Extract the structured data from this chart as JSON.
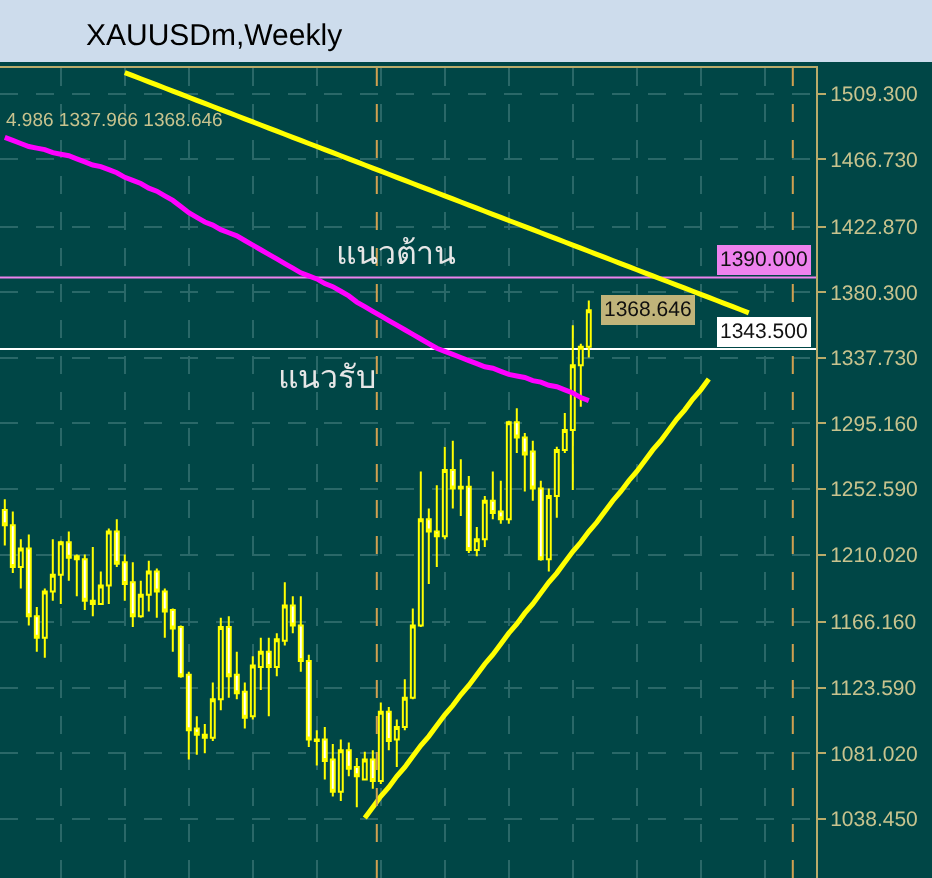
{
  "chart_data": {
    "type": "candlestick",
    "title": "XAUUSDm,Weekly",
    "color": "#ffff00",
    "categories": [
      null,
      null,
      null,
      null,
      null,
      null,
      null,
      null,
      null,
      null,
      null,
      null,
      null,
      null,
      null,
      null,
      null,
      null,
      null,
      null,
      null,
      null,
      null,
      null,
      null,
      null,
      null,
      null,
      null,
      null,
      null,
      null,
      null,
      null,
      null,
      null,
      null,
      null,
      null,
      null,
      null,
      null,
      null,
      null,
      null,
      null,
      null,
      null,
      null,
      null,
      null,
      null,
      null,
      null,
      null,
      null,
      null,
      null,
      null,
      null,
      null,
      null,
      null,
      null,
      null,
      null,
      null,
      null,
      null,
      null,
      null,
      null,
      null,
      null,
      null,
      null,
      null,
      null,
      null,
      null,
      null,
      null,
      null,
      null,
      null,
      null,
      null,
      null,
      null,
      null,
      null,
      null,
      null,
      null,
      null,
      null,
      null,
      null,
      null,
      null,
      null,
      null
    ],
    "ohlc": [
      [
        1239,
        1246,
        1216,
        1229
      ],
      [
        1229,
        1238,
        1198,
        1202
      ],
      [
        1202,
        1220,
        1188,
        1214
      ],
      [
        1214,
        1223,
        1164,
        1170
      ],
      [
        1170,
        1176,
        1147,
        1156
      ],
      [
        1156,
        1188,
        1143,
        1186
      ],
      [
        1186,
        1220,
        1180,
        1197
      ],
      [
        1197,
        1219,
        1178,
        1218
      ],
      [
        1218,
        1225,
        1193,
        1208
      ],
      [
        1209,
        1210,
        1183,
        1207
      ],
      [
        1207,
        1210,
        1174,
        1180
      ],
      [
        1180,
        1215,
        1170,
        1178
      ],
      [
        1178,
        1199,
        1178,
        1190
      ],
      [
        1190,
        1227,
        1178,
        1225
      ],
      [
        1225,
        1233,
        1202,
        1204
      ],
      [
        1205,
        1210,
        1180,
        1191
      ],
      [
        1192,
        1205,
        1163,
        1170
      ],
      [
        1170,
        1193,
        1169,
        1184
      ],
      [
        1184,
        1206,
        1173,
        1199
      ],
      [
        1199,
        1201,
        1169,
        1186
      ],
      [
        1186,
        1188,
        1156,
        1173
      ],
      [
        1174,
        1175,
        1147,
        1162
      ],
      [
        1163,
        1164,
        1130,
        1131
      ],
      [
        1132,
        1134,
        1077,
        1096
      ],
      [
        1097,
        1105,
        1080,
        1093
      ],
      [
        1093,
        1100,
        1081,
        1091
      ],
      [
        1091,
        1127,
        1089,
        1116
      ],
      [
        1116,
        1169,
        1109,
        1163
      ],
      [
        1163,
        1170,
        1117,
        1131
      ],
      [
        1132,
        1147,
        1116,
        1120
      ],
      [
        1121,
        1127,
        1097,
        1104
      ],
      [
        1105,
        1144,
        1103,
        1138
      ],
      [
        1137,
        1156,
        1122,
        1147
      ],
      [
        1147,
        1156,
        1105,
        1137
      ],
      [
        1137,
        1159,
        1131,
        1155
      ],
      [
        1154,
        1192,
        1151,
        1177
      ],
      [
        1177,
        1183,
        1159,
        1164
      ],
      [
        1164,
        1183,
        1134,
        1141
      ],
      [
        1141,
        1145,
        1085,
        1090
      ],
      [
        1090,
        1096,
        1073,
        1089
      ],
      [
        1090,
        1098,
        1064,
        1076
      ],
      [
        1077,
        1087,
        1053,
        1056
      ],
      [
        1056,
        1090,
        1050,
        1083
      ],
      [
        1083,
        1088,
        1066,
        1071
      ],
      [
        1072,
        1078,
        1046,
        1066
      ],
      [
        1064,
        1082,
        1064,
        1077
      ],
      [
        1077,
        1083,
        1058,
        1063
      ],
      [
        1063,
        1114,
        1061,
        1108
      ],
      [
        1108,
        1111,
        1083,
        1089
      ],
      [
        1090,
        1103,
        1072,
        1098
      ],
      [
        1098,
        1129,
        1096,
        1117
      ],
      [
        1117,
        1175,
        1116,
        1164
      ],
      [
        1164,
        1264,
        1163,
        1233
      ],
      [
        1233,
        1240,
        1191,
        1225
      ],
      [
        1225,
        1255,
        1202,
        1222
      ],
      [
        1222,
        1280,
        1220,
        1265
      ],
      [
        1265,
        1284,
        1240,
        1253
      ],
      [
        1253,
        1272,
        1235,
        1254
      ],
      [
        1254,
        1261,
        1211,
        1213
      ],
      [
        1213,
        1228,
        1209,
        1220
      ],
      [
        1220,
        1248,
        1215,
        1245
      ],
      [
        1245,
        1264,
        1233,
        1237
      ],
      [
        1238,
        1258,
        1230,
        1233
      ],
      [
        1233,
        1297,
        1230,
        1296
      ],
      [
        1296,
        1305,
        1276,
        1286
      ],
      [
        1286,
        1289,
        1251,
        1275
      ],
      [
        1277,
        1284,
        1245,
        1253
      ],
      [
        1253,
        1258,
        1206,
        1207
      ],
      [
        1207,
        1253,
        1199,
        1248
      ],
      [
        1248,
        1280,
        1234,
        1278
      ],
      [
        1278,
        1302,
        1276,
        1291
      ],
      [
        1291,
        1359,
        1252,
        1333
      ],
      [
        1333,
        1347,
        1306,
        1345
      ],
      [
        1345,
        1375,
        1337.966,
        1368.646
      ],
      null,
      null,
      null,
      null,
      null,
      null,
      null,
      null,
      null,
      null,
      null,
      null,
      null,
      null,
      null,
      null,
      null,
      null,
      null,
      null,
      null,
      null,
      null,
      null,
      null,
      null,
      null,
      null
    ],
    "series": [
      {
        "type": "line",
        "color": "#ff00ff",
        "values": [
          1481,
          1479,
          1477,
          1475,
          1474,
          1473,
          1471,
          1470,
          1469,
          1467,
          1465,
          1463,
          1462,
          1460,
          1458,
          1455,
          1453,
          1451,
          1448,
          1446,
          1443,
          1440,
          1436,
          1432,
          1429,
          1426,
          1424,
          1421,
          1419,
          1417,
          1414,
          1411,
          1408,
          1405,
          1402,
          1399,
          1396,
          1393,
          1391,
          1389,
          1386,
          1384,
          1381,
          1378,
          1374,
          1371,
          1368,
          1365,
          1362,
          1359,
          1356,
          1353,
          1350,
          1347,
          1344,
          1342,
          1340,
          1338,
          1336,
          1334,
          1332,
          1331,
          1329,
          1327,
          1326,
          1325,
          1323,
          1322,
          1320,
          1319,
          1317,
          1315,
          1312,
          1310,
          null,
          null,
          null,
          null,
          null,
          null,
          null,
          null,
          null,
          null,
          null,
          null,
          null,
          null,
          null,
          null,
          null,
          null,
          null,
          null,
          null,
          null,
          null,
          null,
          null,
          null,
          null,
          null
        ]
      },
      {
        "type": "line",
        "color": "#ffff00",
        "values": [
          null,
          null,
          null,
          null,
          null,
          null,
          null,
          null,
          null,
          null,
          null,
          null,
          null,
          null,
          null,
          1523,
          1521,
          1519,
          1517,
          1515,
          1513,
          1511,
          1509,
          1507,
          1505,
          1503,
          1501,
          1499,
          1497,
          1495,
          1493,
          1491,
          1489,
          1487,
          1485,
          1483,
          1481,
          1479,
          1477,
          1475,
          1473,
          1471,
          1469,
          1467,
          1465,
          1463,
          1461,
          1459,
          1457,
          1455,
          1453,
          1451,
          1449,
          1447,
          1445,
          1443,
          1441,
          1439,
          1437,
          1435,
          1433,
          1431,
          1429,
          1427,
          1425,
          1423,
          1421,
          1419,
          1417,
          1415,
          1413,
          1411,
          1409,
          1407,
          1405,
          1403,
          1401,
          1399,
          1397,
          1395,
          1393,
          1391,
          1389,
          1387,
          1385,
          1383,
          1381,
          1379,
          1377,
          1375,
          1373,
          1371,
          1369,
          1367,
          null,
          null,
          null,
          null,
          null,
          null,
          null,
          null
        ]
      },
      {
        "type": "line",
        "color": "#ffff00",
        "values": [
          null,
          null,
          null,
          null,
          null,
          null,
          null,
          null,
          null,
          null,
          null,
          null,
          null,
          null,
          null,
          null,
          null,
          null,
          null,
          null,
          null,
          null,
          null,
          null,
          null,
          null,
          null,
          null,
          null,
          null,
          null,
          null,
          null,
          null,
          null,
          null,
          null,
          null,
          null,
          null,
          null,
          null,
          null,
          null,
          null,
          1039,
          1046,
          1053,
          1059,
          1066,
          1072,
          1079,
          1086,
          1092,
          1099,
          1106,
          1112,
          1119,
          1125,
          1132,
          1139,
          1145,
          1152,
          1159,
          1165,
          1172,
          1178,
          1185,
          1192,
          1198,
          1205,
          1212,
          1218,
          1225,
          1231,
          1238,
          1245,
          1251,
          1258,
          1264,
          1271,
          1278,
          1284,
          1291,
          1298,
          1304,
          1311,
          1317,
          1324,
          null,
          null,
          null,
          null,
          null,
          null,
          null,
          null,
          null,
          null,
          null,
          null,
          null
        ]
      }
    ],
    "ylim": [
      1000,
      1526
    ],
    "yticks": [
      {
        "value": 1038.45,
        "label": "1038.450"
      },
      {
        "value": 1081.02,
        "label": "1081.020"
      },
      {
        "value": 1123.59,
        "label": "1123.590"
      },
      {
        "value": 1166.16,
        "label": "1166.160"
      },
      {
        "value": 1210.02,
        "label": "1210.020"
      },
      {
        "value": 1252.59,
        "label": "1252.590"
      },
      {
        "value": 1295.16,
        "label": "1295.160"
      },
      {
        "value": 1337.73,
        "label": "1337.730"
      },
      {
        "value": 1380.3,
        "label": "1380.300"
      },
      {
        "value": 1422.87,
        "label": "1422.870"
      },
      {
        "value": 1466.73,
        "label": "1466.730"
      },
      {
        "value": 1509.3,
        "label": "1509.300"
      }
    ],
    "grid": true,
    "tick_labels": "y",
    "ref_lines": [
      {
        "axis": "y",
        "value": 1390,
        "label": "แนวต้าน",
        "color": "#ee82ee"
      },
      {
        "axis": "y",
        "value": 1343.5,
        "label": "แนวรับ",
        "color": "#ffffff"
      }
    ],
    "annotations": [
      "4.986 1337.966 1368.646",
      {
        "text": "1390.000",
        "y": 1390
      },
      "1368.646",
      {
        "text": "1343.500",
        "y": 1343.5
      }
    ]
  }
}
